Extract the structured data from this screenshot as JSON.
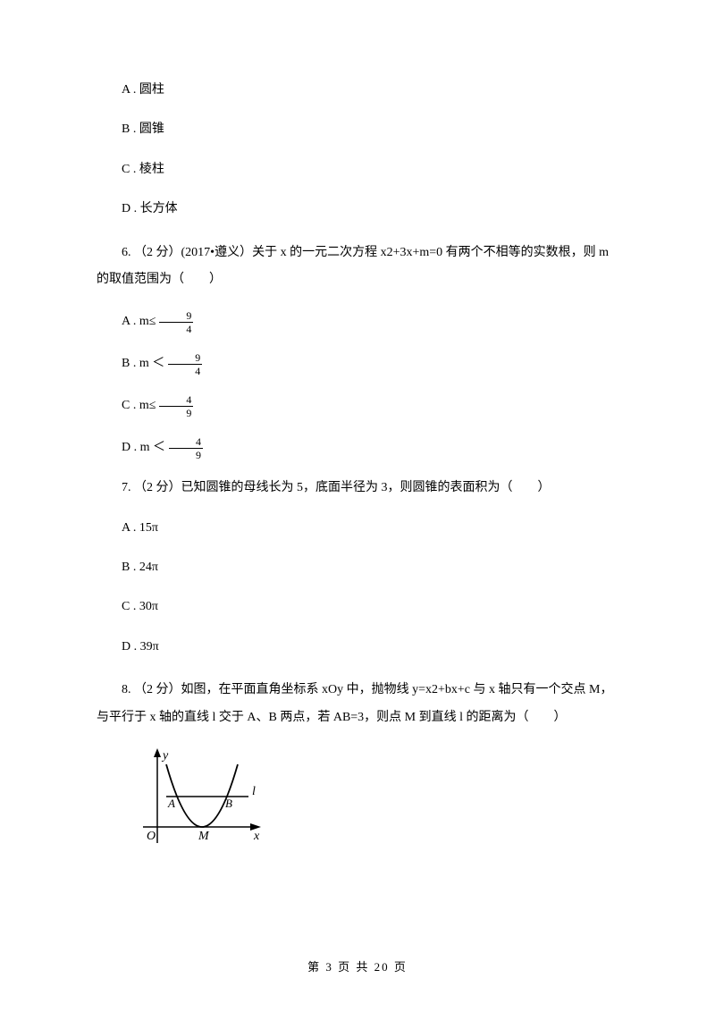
{
  "options_q5": [
    {
      "letter": "A",
      "text": "圆柱"
    },
    {
      "letter": "B",
      "text": "圆锥"
    },
    {
      "letter": "C",
      "text": "棱柱"
    },
    {
      "letter": "D",
      "text": "长方体"
    }
  ],
  "q6": {
    "text": "6. （2 分）(2017•遵义）关于 x 的一元二次方程 x2+3x+m=0 有两个不相等的实数根，则 m 的取值范围为（　　）",
    "options": [
      {
        "letter": "A",
        "prefix": "m≤",
        "num": "9",
        "den": "4"
      },
      {
        "letter": "B",
        "prefix": "m ＜",
        "num": "9",
        "den": "4"
      },
      {
        "letter": "C",
        "prefix": "m≤",
        "num": "4",
        "den": "9"
      },
      {
        "letter": "D",
        "prefix": "m ＜",
        "num": "4",
        "den": "9"
      }
    ]
  },
  "q7": {
    "text": "7. （2 分）已知圆锥的母线长为 5，底面半径为 3，则圆锥的表面积为（　　）",
    "options": [
      {
        "letter": "A",
        "text": "15π"
      },
      {
        "letter": "B",
        "text": "24π"
      },
      {
        "letter": "C",
        "text": "30π"
      },
      {
        "letter": "D",
        "text": "39π"
      }
    ]
  },
  "q8": {
    "text": "8. （2 分）如图，在平面直角坐标系 xOy 中，抛物线 y=x2+bx+c 与 x 轴只有一个交点 M，与平行于 x 轴的直线 l 交于 A、B 两点，若 AB=3，则点 M 到直线 l 的距离为（　　）",
    "figure": {
      "width": 150,
      "height": 120,
      "stroke": "#000000",
      "fill_bg": "#ffffff",
      "labels": {
        "y": "y",
        "x": "x",
        "O": "O",
        "M": "M",
        "A": "A",
        "B": "B",
        "l": "l"
      }
    }
  },
  "footer": "第 3 页 共 20 页"
}
